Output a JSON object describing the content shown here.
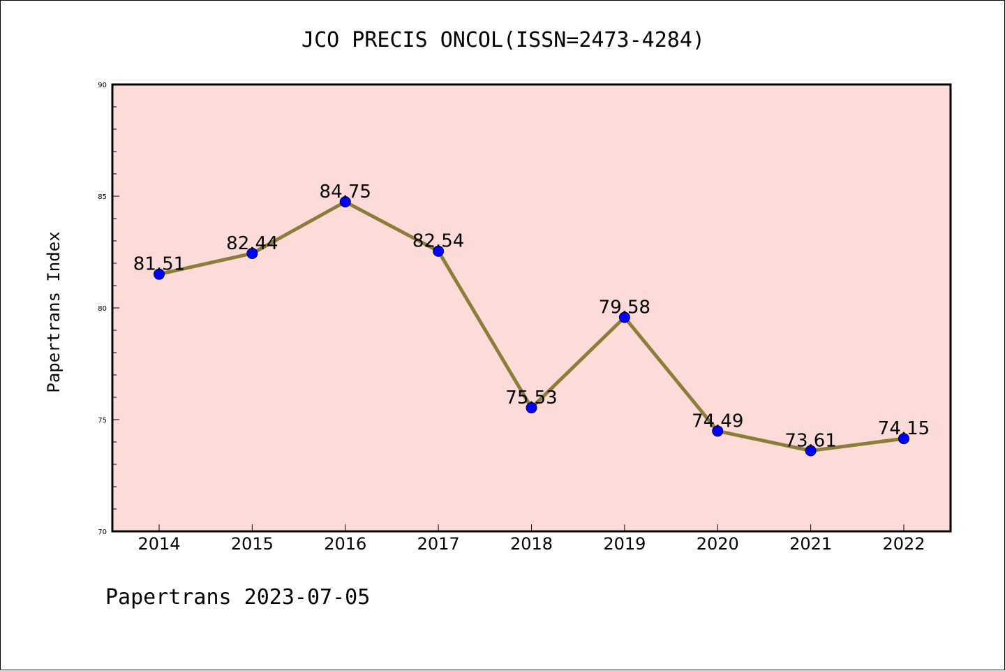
{
  "chart_data": {
    "type": "line",
    "title": "JCO PRECIS ONCOL(ISSN=2473-4284)",
    "xlabel": "",
    "ylabel": "Papertrans Index",
    "footer": "Papertrans 2023-07-05",
    "categories": [
      "2014",
      "2015",
      "2016",
      "2017",
      "2018",
      "2019",
      "2020",
      "2021",
      "2022"
    ],
    "values": [
      81.51,
      82.44,
      84.75,
      82.54,
      75.53,
      79.58,
      74.49,
      73.61,
      74.15
    ],
    "data_labels": [
      "81.51",
      "82.44",
      "84.75",
      "82.54",
      "75.53",
      "79.58",
      "74.49",
      "73.61",
      "74.15"
    ],
    "ylim": [
      70,
      90
    ],
    "yticks": [
      "70",
      "75",
      "80",
      "85",
      "90"
    ],
    "grid": false,
    "colors": {
      "plot_background": "#fddbd8",
      "line": "#8b7d3a",
      "marker": "#0000ff"
    }
  }
}
